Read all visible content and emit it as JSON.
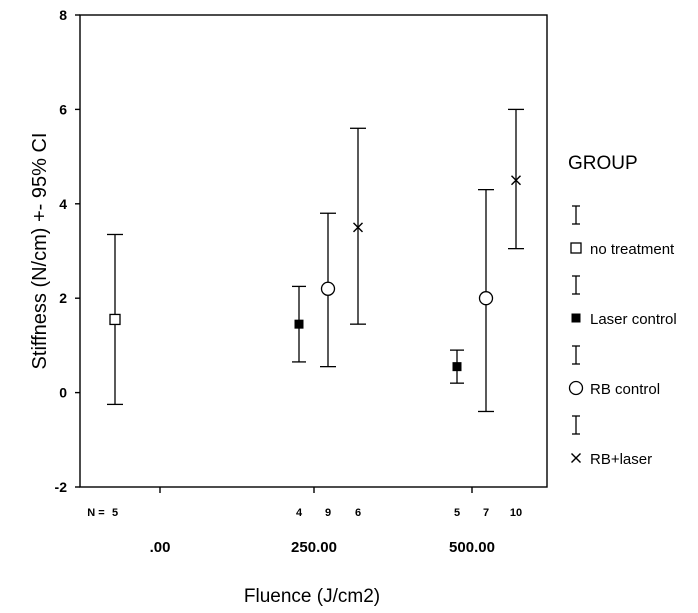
{
  "chart_data": {
    "type": "errorbar",
    "xlabel": "Fluence (J/cm2)",
    "ylabel": "Stiffness (N/cm) +- 95% CI",
    "ylim": [
      -2,
      8
    ],
    "yticks": [
      -2,
      0,
      2,
      4,
      6,
      8
    ],
    "categories": [
      ".00",
      "250.00",
      "500.00"
    ],
    "n_label": "N =",
    "legend_title": "GROUP",
    "legend_position": "right",
    "series": [
      {
        "name": "no treatment",
        "marker": "open-square",
        "points": [
          {
            "category": ".00",
            "mean": 1.55,
            "lower": -0.25,
            "upper": 3.35,
            "n": "5"
          }
        ]
      },
      {
        "name": "Laser control",
        "marker": "filled-square",
        "points": [
          {
            "category": "250.00",
            "mean": 1.45,
            "lower": 0.65,
            "upper": 2.25,
            "n": "4"
          },
          {
            "category": "500.00",
            "mean": 0.55,
            "lower": 0.2,
            "upper": 0.9,
            "n": "5"
          }
        ]
      },
      {
        "name": "RB control",
        "marker": "open-circle",
        "points": [
          {
            "category": "250.00",
            "mean": 2.2,
            "lower": 0.55,
            "upper": 3.8,
            "n": "9"
          },
          {
            "category": "500.00",
            "mean": 2.0,
            "lower": -0.4,
            "upper": 4.3,
            "n": "7"
          }
        ]
      },
      {
        "name": "RB+laser",
        "marker": "cross",
        "points": [
          {
            "category": "250.00",
            "mean": 3.5,
            "lower": 1.45,
            "upper": 5.6,
            "n": "6"
          },
          {
            "category": "500.00",
            "mean": 4.5,
            "lower": 3.05,
            "upper": 6.0,
            "n": "10"
          }
        ]
      }
    ]
  }
}
